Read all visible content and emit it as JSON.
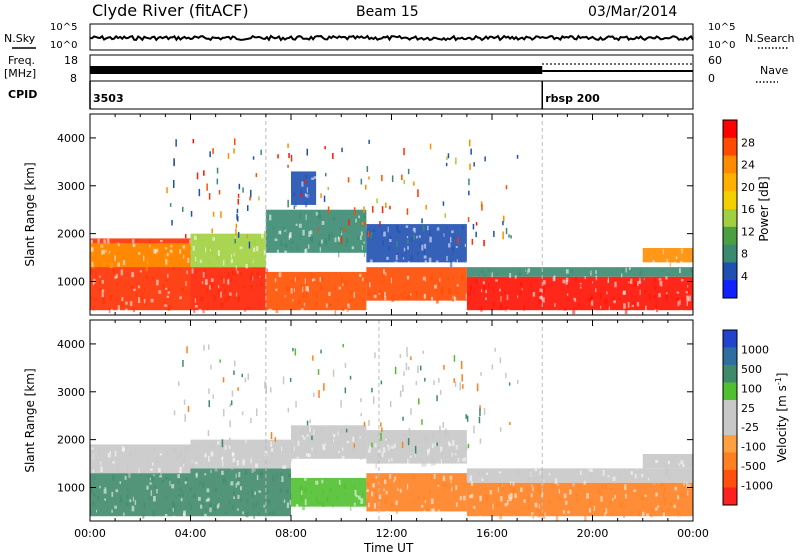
{
  "header": {
    "station": "Clyde River (fitACF)",
    "beam": "Beam 15",
    "date": "03/Mar/2014"
  },
  "nsky_panel": {
    "left_label": "N.Sky",
    "right_label": "N.Search",
    "ticks_left": [
      "10^5",
      "10^0"
    ],
    "ticks_right": [
      "10^5",
      "10^0"
    ]
  },
  "freq_panel": {
    "left_label_1": "Freq.",
    "left_label_2": "[MHz]",
    "right_label": "Nave",
    "ticks_left": [
      "18",
      "8"
    ],
    "ticks_right": [
      "60",
      "0"
    ]
  },
  "cpid_panel": {
    "label": "CPID",
    "segments": [
      {
        "start_hour": 0,
        "label": "3503"
      },
      {
        "start_hour": 18,
        "label": "rbsp  200"
      }
    ]
  },
  "power_colorbar": {
    "label": "Power [dB]",
    "ticks": [
      "28",
      "24",
      "20",
      "16",
      "12",
      "8",
      "4"
    ],
    "colors": [
      "#ff0000",
      "#ff4a00",
      "#ff8c00",
      "#ffb000",
      "#f4d000",
      "#a0d040",
      "#4aa040",
      "#3a8a70",
      "#2050b0",
      "#1020ff"
    ]
  },
  "velocity_colorbar": {
    "label_prefix": "Velocity [m s",
    "label_sup": "-1",
    "label_suffix": "]",
    "ticks": [
      "1000",
      "500",
      "100",
      "25",
      "-25",
      "-100",
      "-500",
      "-1000"
    ],
    "colors": [
      "#2244cc",
      "#2f6fa0",
      "#3f8a6a",
      "#50c030",
      "#c8c8c8",
      "#c8c8c8",
      "#ffa040",
      "#ff8020",
      "#ff5010",
      "#ff2020"
    ]
  },
  "chart_data": [
    {
      "type": "heatmap",
      "name_on_chart": "",
      "ylabel": "Slant Range [km]",
      "y_ticks": [
        1000,
        2000,
        3000,
        4000
      ],
      "ylim": [
        300,
        4500
      ],
      "xlim": [
        0,
        24
      ],
      "bands": [
        {
          "x0": 0,
          "x1": 4,
          "y0": 400,
          "y1": 1900,
          "color": "#ff3000"
        },
        {
          "x0": 0,
          "x1": 4,
          "y0": 1300,
          "y1": 1800,
          "color": "#ff9000"
        },
        {
          "x0": 4,
          "x1": 7,
          "y0": 400,
          "y1": 1300,
          "color": "#ff2000"
        },
        {
          "x0": 4,
          "x1": 7,
          "y0": 1300,
          "y1": 2000,
          "color": "#a0d040"
        },
        {
          "x0": 7,
          "x1": 11,
          "y0": 400,
          "y1": 1200,
          "color": "#ff5000"
        },
        {
          "x0": 7,
          "x1": 11,
          "y0": 1600,
          "y1": 2500,
          "color": "#3a8a70"
        },
        {
          "x0": 8,
          "x1": 9,
          "y0": 2600,
          "y1": 3300,
          "color": "#2050b0"
        },
        {
          "x0": 11,
          "x1": 15,
          "y0": 600,
          "y1": 1300,
          "color": "#ff4a00"
        },
        {
          "x0": 11,
          "x1": 15,
          "y0": 1400,
          "y1": 2200,
          "color": "#2050b0"
        },
        {
          "x0": 15,
          "x1": 24,
          "y0": 400,
          "y1": 1100,
          "color": "#ff1000"
        },
        {
          "x0": 15,
          "x1": 24,
          "y0": 1100,
          "y1": 1300,
          "color": "#3a8a70"
        },
        {
          "x0": 22,
          "x1": 24,
          "y0": 1400,
          "y1": 1700,
          "color": "#ff8c00"
        }
      ]
    },
    {
      "type": "heatmap",
      "name_on_chart": "",
      "ylabel": "Slant Range [km]",
      "xlabel": "Time UT",
      "x_ticks": [
        "00:00",
        "04:00",
        "08:00",
        "12:00",
        "16:00",
        "20:00",
        "00:00"
      ],
      "y_ticks": [
        1000,
        2000,
        3000,
        4000
      ],
      "ylim": [
        300,
        4500
      ],
      "xlim": [
        0,
        24
      ],
      "bands": [
        {
          "x0": 0,
          "x1": 4,
          "y0": 400,
          "y1": 1300,
          "color": "#3f8a6a"
        },
        {
          "x0": 0,
          "x1": 4,
          "y0": 1300,
          "y1": 1900,
          "color": "#c8c8c8"
        },
        {
          "x0": 4,
          "x1": 8,
          "y0": 400,
          "y1": 1400,
          "color": "#3f8a6a"
        },
        {
          "x0": 4,
          "x1": 8,
          "y0": 1400,
          "y1": 2000,
          "color": "#c8c8c8"
        },
        {
          "x0": 8,
          "x1": 11,
          "y0": 600,
          "y1": 1200,
          "color": "#50c030"
        },
        {
          "x0": 8,
          "x1": 11,
          "y0": 1600,
          "y1": 2300,
          "color": "#c8c8c8"
        },
        {
          "x0": 11,
          "x1": 15,
          "y0": 500,
          "y1": 1300,
          "color": "#ff8020"
        },
        {
          "x0": 11,
          "x1": 15,
          "y0": 1500,
          "y1": 2200,
          "color": "#c8c8c8"
        },
        {
          "x0": 15,
          "x1": 24,
          "y0": 400,
          "y1": 1100,
          "color": "#ff8020"
        },
        {
          "x0": 15,
          "x1": 24,
          "y0": 1100,
          "y1": 1400,
          "color": "#c8c8c8"
        },
        {
          "x0": 22,
          "x1": 24,
          "y0": 1400,
          "y1": 1700,
          "color": "#c8c8c8"
        }
      ]
    }
  ]
}
